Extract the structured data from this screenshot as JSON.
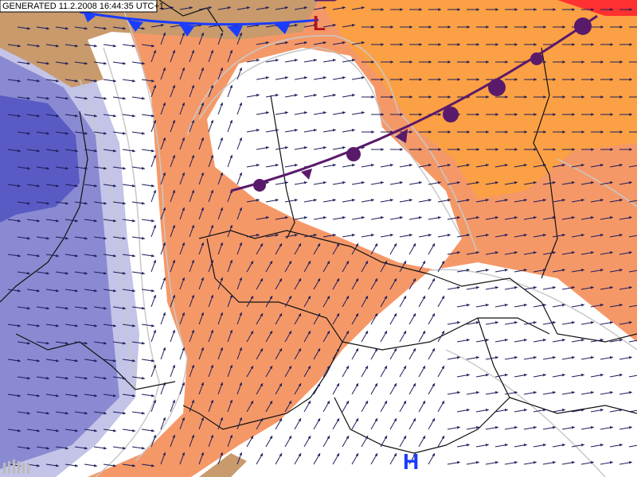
{
  "header": {
    "generated": "GENERATED 11.2.2008 16:44:35 UTC+1"
  },
  "pressure_centers": [
    {
      "label": "L"
    },
    {
      "label": "H"
    }
  ]
}
